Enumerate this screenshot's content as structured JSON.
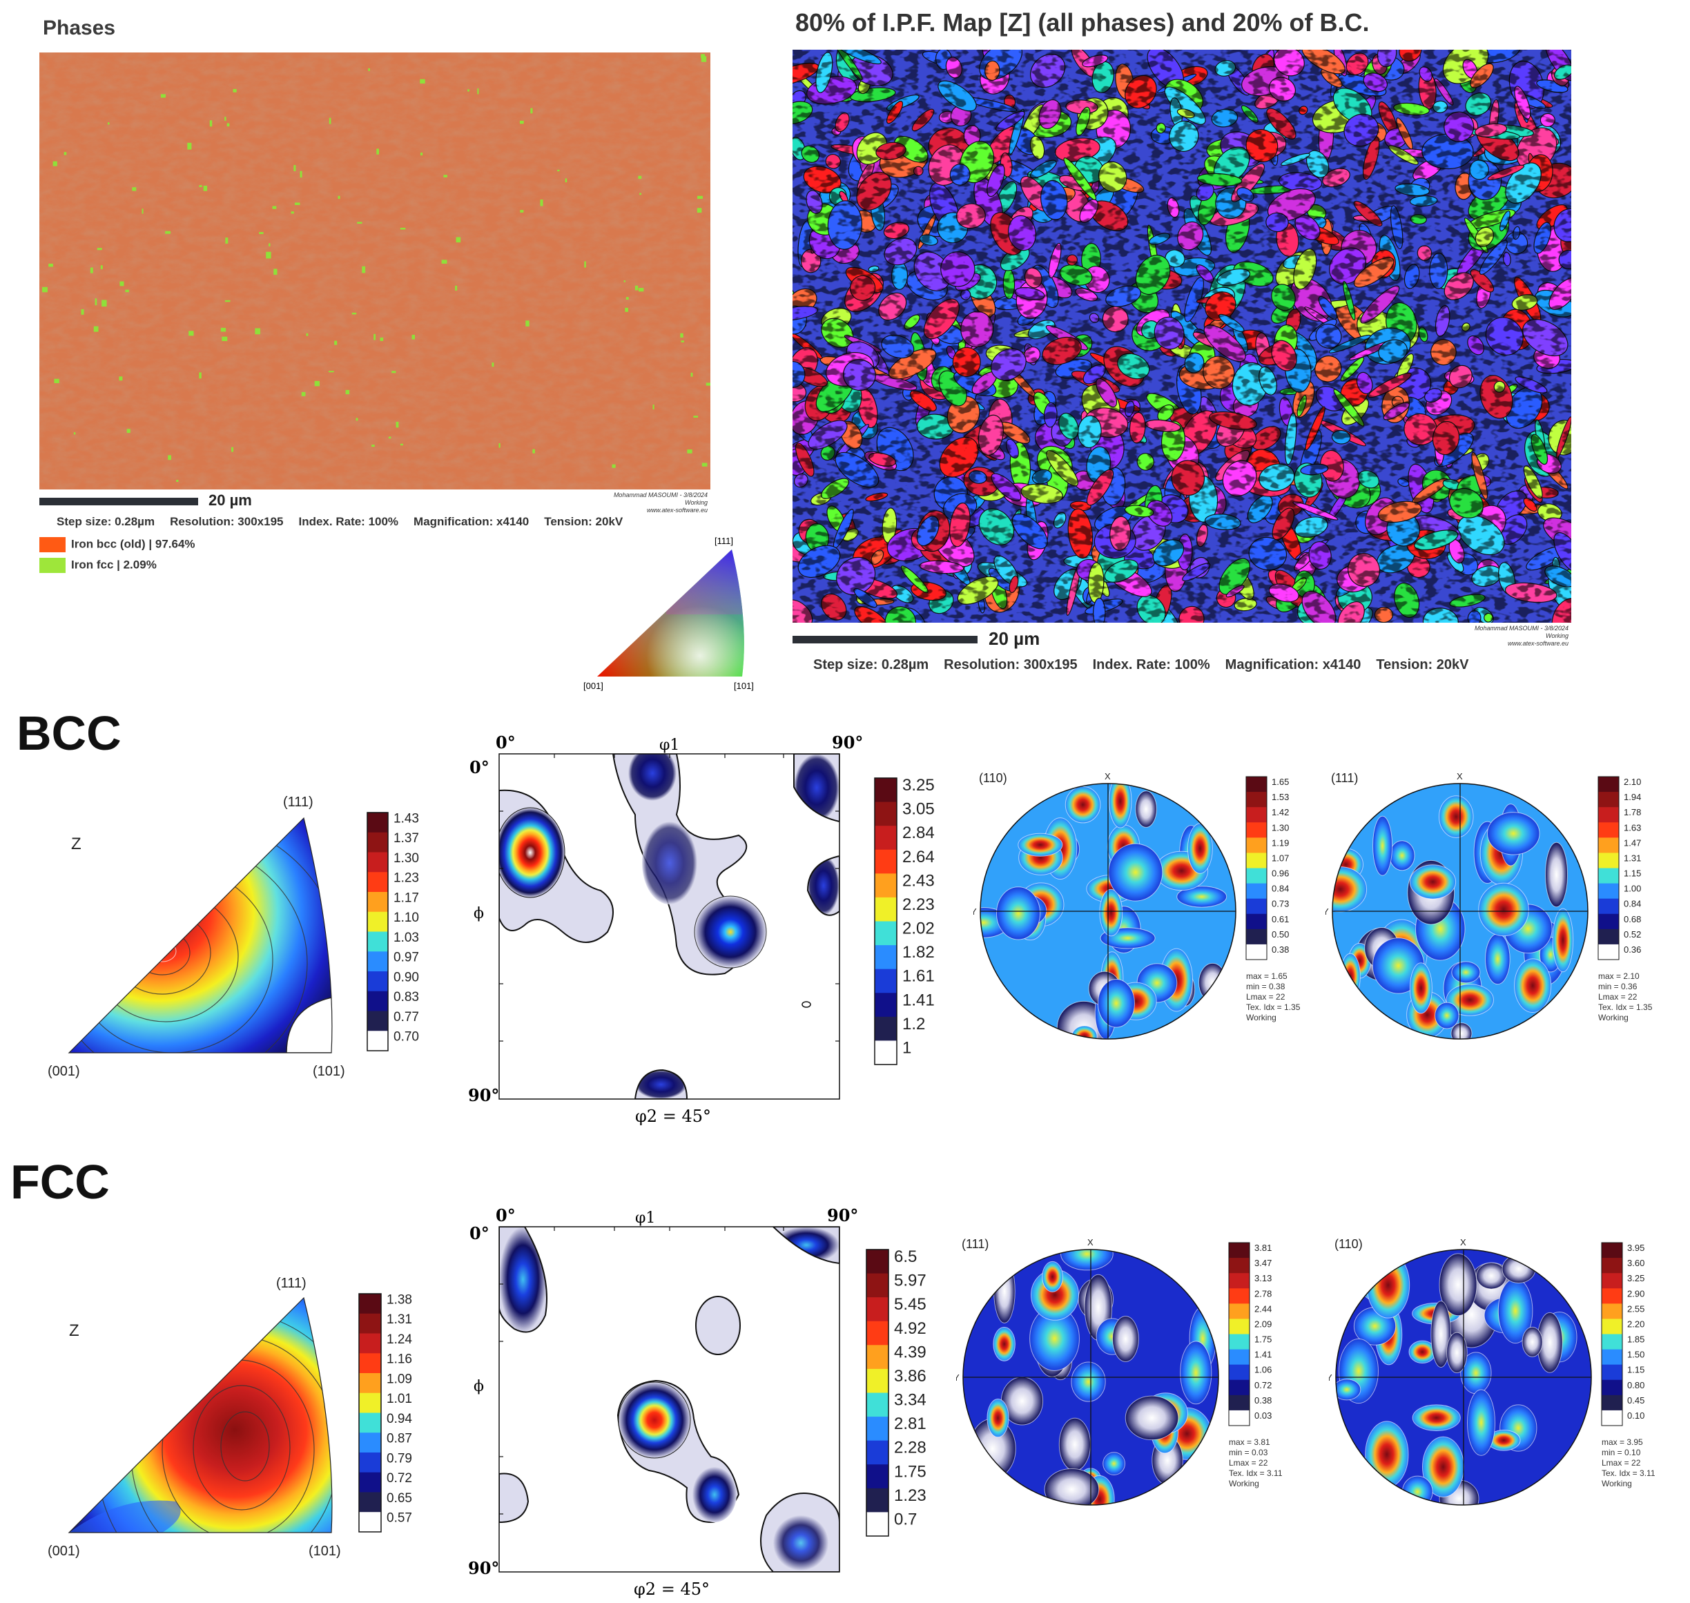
{
  "phases_map": {
    "title": "Phases",
    "scale_label": "20 µm",
    "author_lines": [
      "Mohammad MASOUMI - 3/8/2024",
      "Working",
      "www.atex-software.eu"
    ],
    "info": [
      "Step size: 0.28µm",
      "Resolution: 300x195",
      "Index. Rate: 100%",
      "Magnification: x4140",
      "Tension: 20kV"
    ],
    "legend": [
      {
        "label": "Iron bcc (old) | 97.64%",
        "color": "#ff5a14"
      },
      {
        "label": "Iron fcc | 2.09%",
        "color": "#9ee63a"
      }
    ]
  },
  "ipf_map": {
    "title": "80% of I.P.F. Map [Z] (all phases) and 20% of B.C.",
    "scale_label": "20 µm",
    "author_lines": [
      "Mohammad MASOUMI - 3/8/2024",
      "Working",
      "www.atex-software.eu"
    ],
    "info": [
      "Step size: 0.28µm",
      "Resolution: 300x195",
      "Index. Rate: 100%",
      "Magnification: x4140",
      "Tension: 20kV"
    ],
    "key_labels": {
      "top": "[111]",
      "left": "[001]",
      "right": "[101]"
    }
  },
  "bcc": {
    "heading": "BCC",
    "ipf": {
      "axis": "Z",
      "corners": {
        "top": "(111)",
        "left": "(001)",
        "right": "(101)"
      },
      "colorbar": [
        "1.43",
        "1.37",
        "1.30",
        "1.23",
        "1.17",
        "1.10",
        "1.03",
        "0.97",
        "0.90",
        "0.83",
        "0.77",
        "0.70"
      ]
    },
    "odf": {
      "x_left": "0°",
      "x_right": "90°",
      "x_title": "φ1",
      "y_top": "0°",
      "y_bottom": "90°",
      "y_title": "ϕ",
      "section": "φ2 = 45°",
      "colorbar": [
        "3.25",
        "3.05",
        "2.84",
        "2.64",
        "2.43",
        "2.23",
        "2.02",
        "1.82",
        "1.61",
        "1.41",
        "1.2",
        "1"
      ]
    },
    "pole_figures": [
      {
        "plane": "(110)",
        "x_label": "X",
        "y_label": "Y",
        "colorbar": [
          "1.65",
          "1.53",
          "1.42",
          "1.30",
          "1.19",
          "1.07",
          "0.96",
          "0.84",
          "0.73",
          "0.61",
          "0.50",
          "0.38"
        ],
        "stats": [
          "max = 1.65",
          "min = 0.38",
          "Lmax = 22",
          "Tex. Idx = 1.35",
          "Working"
        ]
      },
      {
        "plane": "(111)",
        "x_label": "X",
        "y_label": "Y",
        "colorbar": [
          "2.10",
          "1.94",
          "1.78",
          "1.63",
          "1.47",
          "1.31",
          "1.15",
          "1.00",
          "0.84",
          "0.68",
          "0.52",
          "0.36"
        ],
        "stats": [
          "max = 2.10",
          "min = 0.36",
          "Lmax = 22",
          "Tex. Idx = 1.35",
          "Working"
        ]
      }
    ]
  },
  "fcc": {
    "heading": "FCC",
    "ipf": {
      "axis": "Z",
      "corners": {
        "top": "(111)",
        "left": "(001)",
        "right": "(101)"
      },
      "colorbar": [
        "1.38",
        "1.31",
        "1.24",
        "1.16",
        "1.09",
        "1.01",
        "0.94",
        "0.87",
        "0.79",
        "0.72",
        "0.65",
        "0.57"
      ]
    },
    "odf": {
      "x_left": "0°",
      "x_right": "90°",
      "x_title": "φ1",
      "y_top": "0°",
      "y_bottom": "90°",
      "y_title": "ϕ",
      "section": "φ2 = 45°",
      "colorbar": [
        "6.5",
        "5.97",
        "5.45",
        "4.92",
        "4.39",
        "3.86",
        "3.34",
        "2.81",
        "2.28",
        "1.75",
        "1.23",
        "0.7"
      ]
    },
    "pole_figures": [
      {
        "plane": "(111)",
        "x_label": "X",
        "y_label": "Y",
        "colorbar": [
          "3.81",
          "3.47",
          "3.13",
          "2.78",
          "2.44",
          "2.09",
          "1.75",
          "1.41",
          "1.06",
          "0.72",
          "0.38",
          "0.03"
        ],
        "stats": [
          "max = 3.81",
          "min = 0.03",
          "Lmax = 22",
          "Tex. Idx = 3.11",
          "Working"
        ]
      },
      {
        "plane": "(110)",
        "x_label": "X",
        "y_label": "Y",
        "colorbar": [
          "3.95",
          "3.60",
          "3.25",
          "2.90",
          "2.55",
          "2.20",
          "1.85",
          "1.50",
          "1.15",
          "0.80",
          "0.45",
          "0.10"
        ],
        "stats": [
          "max = 3.95",
          "min = 0.10",
          "Lmax = 22",
          "Tex. Idx = 3.11",
          "Working"
        ]
      }
    ]
  }
}
